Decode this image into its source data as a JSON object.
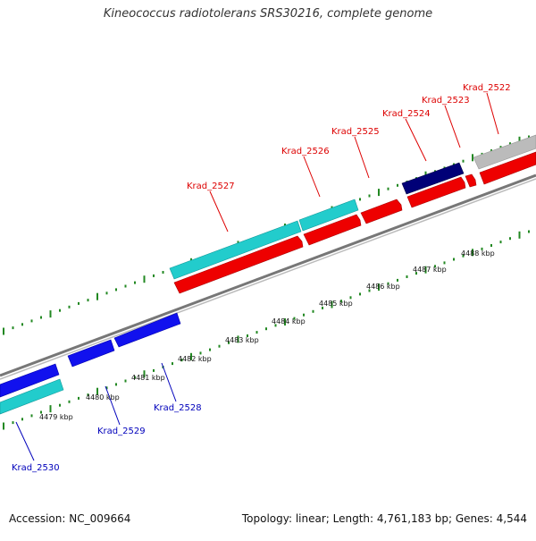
{
  "title": "Kineococcus radiotolerans SRS30216, complete genome",
  "footer": {
    "accession": "Accession: NC_009664",
    "summary": "Topology: linear; Length: 4,761,183 bp; Genes: 4,544"
  },
  "colors": {
    "forward_label": "#dd0000",
    "reverse_label": "#0000bb",
    "cds_forward": "#ee0000",
    "cds_reverse": "#1111ee",
    "rna": "#22cccc",
    "pseudo": "#bbbbbb",
    "dark_gene": "#000077",
    "backbone": "#888888",
    "tick": "#228822"
  },
  "scale": {
    "labels": [
      {
        "id": "t4479",
        "text": "4479 kbp",
        "kbp": 4479
      },
      {
        "id": "t4480",
        "text": "4480 kbp",
        "kbp": 4480
      },
      {
        "id": "t4481",
        "text": "4481 kbp",
        "kbp": 4481
      },
      {
        "id": "t4482",
        "text": "4482 kbp",
        "kbp": 4482
      },
      {
        "id": "t4483",
        "text": "4483 kbp",
        "kbp": 4483
      },
      {
        "id": "t4484",
        "text": "4484 kbp",
        "kbp": 4484
      },
      {
        "id": "t4485",
        "text": "4485 kbp",
        "kbp": 4485
      },
      {
        "id": "t4486",
        "text": "4486 kbp",
        "kbp": 4486
      },
      {
        "id": "t4487",
        "text": "4487 kbp",
        "kbp": 4487
      },
      {
        "id": "t4488",
        "text": "4488 kbp",
        "kbp": 4488
      }
    ]
  },
  "genes": [
    {
      "id": "g2522",
      "label": "Krad_2522",
      "strand": "forward"
    },
    {
      "id": "g2523",
      "label": "Krad_2523",
      "strand": "forward"
    },
    {
      "id": "g2524",
      "label": "Krad_2524",
      "strand": "forward"
    },
    {
      "id": "g2525",
      "label": "Krad_2525",
      "strand": "forward"
    },
    {
      "id": "g2526",
      "label": "Krad_2526",
      "strand": "forward"
    },
    {
      "id": "g2527",
      "label": "Krad_2527",
      "strand": "forward"
    },
    {
      "id": "g2528",
      "label": "Krad_2528",
      "strand": "reverse"
    },
    {
      "id": "g2529",
      "label": "Krad_2529",
      "strand": "reverse"
    },
    {
      "id": "g2530",
      "label": "Krad_2530",
      "strand": "reverse"
    }
  ]
}
